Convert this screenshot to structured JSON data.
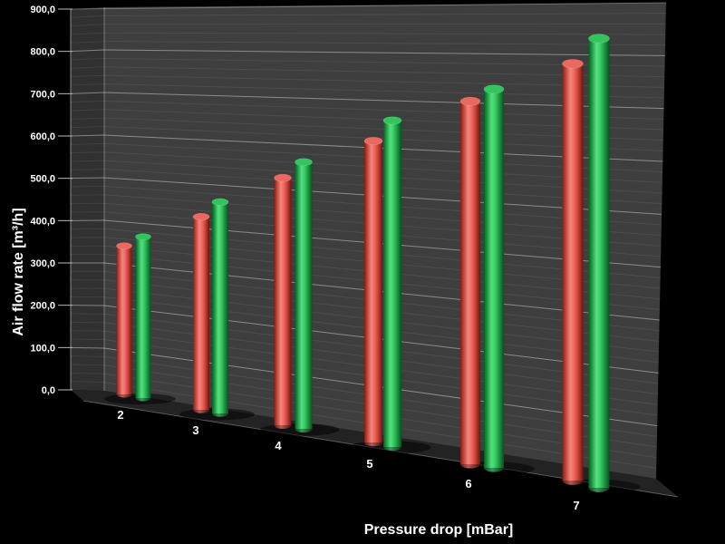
{
  "chart_data": {
    "type": "bar",
    "style": "3d-cylinder",
    "title": "",
    "xlabel": "Pressure drop [mBar]",
    "ylabel": "Air flow rate [m³/h]",
    "categories": [
      "2",
      "3",
      "4",
      "5",
      "6",
      "7"
    ],
    "series": [
      {
        "name": "red-series",
        "color": "#e8554c",
        "values": [
          350,
          420,
          510,
          600,
          690,
          770
        ]
      },
      {
        "name": "green-series",
        "color": "#2fc75f",
        "values": [
          380,
          460,
          550,
          650,
          720,
          830
        ]
      }
    ],
    "ylim": [
      0,
      900
    ],
    "y_major_tick_interval": 100,
    "y_minor_tick_interval": 20,
    "y_tick_labels": [
      "0,0",
      "100,0",
      "200,0",
      "300,0",
      "400,0",
      "500,0",
      "600,0",
      "700,0",
      "800,0",
      "900,0"
    ],
    "grid": true,
    "legend": false,
    "colors": {
      "background": "#000000",
      "back_wall": "#3e3e3e",
      "left_wall": "#313131",
      "floor": "#232323",
      "grid_major": "#9a9a9a",
      "grid_minor": "#4b4b4b",
      "text": "#ffffff",
      "red_center": "#f1716a",
      "red_edge": "#7f1d15",
      "red_top": "#e96861",
      "green_center": "#3fd36d",
      "green_edge": "#0a5d24",
      "green_top": "#33c35f"
    }
  }
}
